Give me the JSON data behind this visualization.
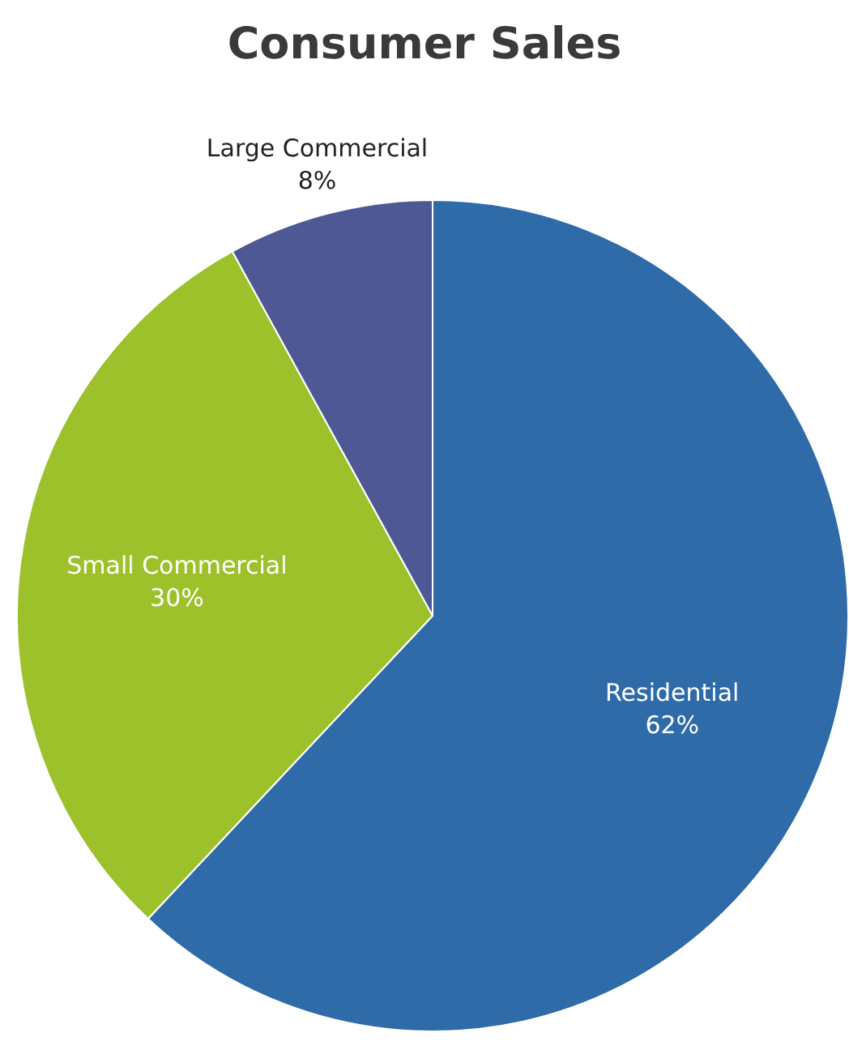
{
  "chart_data": {
    "type": "pie",
    "title": "Consumer Sales",
    "categories": [
      "Residential",
      "Small Commercial",
      "Large Commercial"
    ],
    "values": [
      62,
      30,
      8
    ],
    "colors": [
      "#2f6aa9",
      "#9cc12b",
      "#4e5895"
    ],
    "value_labels": [
      "62%",
      "30%",
      "8%"
    ],
    "legend": false
  }
}
